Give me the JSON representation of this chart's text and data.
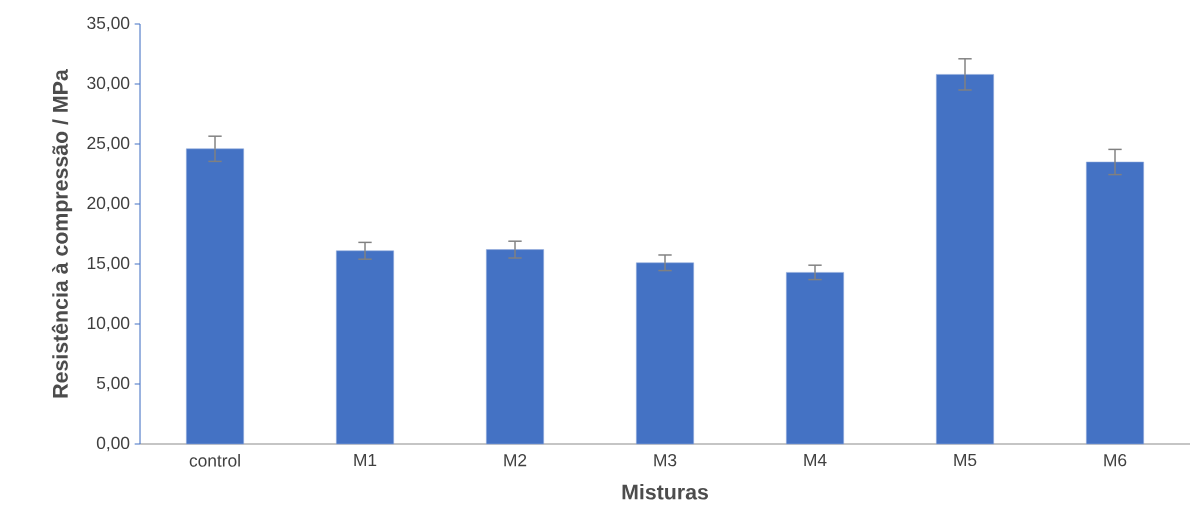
{
  "chart_data": {
    "type": "bar",
    "xlabel": "Misturas",
    "ylabel": "Resistência à compressão / MPa",
    "categories": [
      "control",
      "M1",
      "M2",
      "M3",
      "M4",
      "M5",
      "M6"
    ],
    "values": [
      24.6,
      16.1,
      16.2,
      15.1,
      14.3,
      30.8,
      23.5
    ],
    "errors": [
      1.05,
      0.7,
      0.7,
      0.65,
      0.6,
      1.3,
      1.05
    ],
    "color": "#4472c4",
    "ylim": [
      0,
      35
    ],
    "yticks": [
      {
        "value": 0,
        "label": "0,00"
      },
      {
        "value": 5,
        "label": "5,00"
      },
      {
        "value": 10,
        "label": "10,00"
      },
      {
        "value": 15,
        "label": "15,00"
      },
      {
        "value": 20,
        "label": "20,00"
      },
      {
        "value": 25,
        "label": "25,00"
      },
      {
        "value": 30,
        "label": "30,00"
      },
      {
        "value": 35,
        "label": "35,00"
      }
    ],
    "grid": false
  }
}
